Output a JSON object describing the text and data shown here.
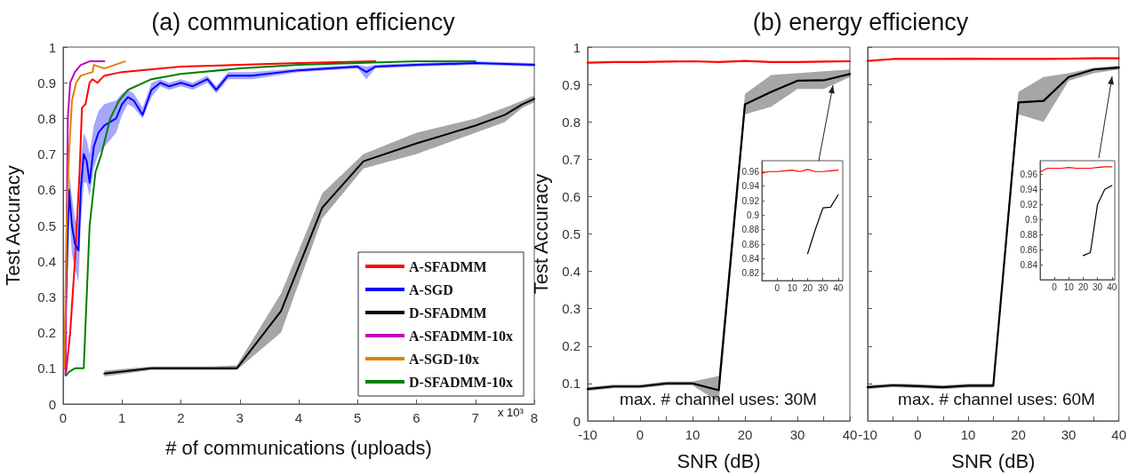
{
  "chart_data": [
    {
      "type": "line",
      "title": "(a) communication efficiency",
      "xlabel": "# of communications (uploads)",
      "ylabel": "Test Accuracy",
      "annotations": [
        "x 10³"
      ],
      "xlim": [
        0,
        8
      ],
      "xticks": [
        0,
        1,
        2,
        3,
        4,
        5,
        6,
        7,
        8
      ],
      "ylim": [
        0,
        1
      ],
      "yticks": [
        0,
        0.1,
        0.2,
        0.3,
        0.4,
        0.5,
        0.6,
        0.7,
        0.8,
        0.9,
        1
      ],
      "legend": "bottom right",
      "series": [
        {
          "name": "A-SFADMM",
          "color": "#ff0000",
          "x": [
            0.05,
            0.12,
            0.2,
            0.28,
            0.32,
            0.38,
            0.45,
            0.5,
            0.58,
            0.7,
            1.0,
            2,
            3,
            4,
            5.3
          ],
          "values": [
            0.09,
            0.2,
            0.4,
            0.65,
            0.83,
            0.84,
            0.9,
            0.91,
            0.9,
            0.92,
            0.93,
            0.945,
            0.95,
            0.955,
            0.96
          ]
        },
        {
          "name": "A-SGD",
          "color": "#0000ff",
          "x": [
            0.02,
            0.1,
            0.15,
            0.2,
            0.26,
            0.3,
            0.35,
            0.4,
            0.45,
            0.52,
            0.6,
            0.7,
            0.9,
            1.0,
            1.1,
            1.2,
            1.35,
            1.5,
            1.65,
            1.8,
            2.0,
            2.2,
            2.45,
            2.6,
            2.8,
            3.2,
            4.0,
            5.0,
            5.15,
            5.3,
            6.0,
            7.0,
            8.0
          ],
          "values": [
            0.1,
            0.6,
            0.5,
            0.45,
            0.43,
            0.6,
            0.7,
            0.68,
            0.62,
            0.72,
            0.76,
            0.78,
            0.8,
            0.84,
            0.86,
            0.85,
            0.81,
            0.88,
            0.9,
            0.89,
            0.9,
            0.89,
            0.91,
            0.88,
            0.92,
            0.92,
            0.935,
            0.945,
            0.93,
            0.945,
            0.95,
            0.955,
            0.95
          ],
          "lower": [
            0.09,
            0.55,
            0.42,
            0.38,
            0.34,
            0.5,
            0.62,
            0.62,
            0.58,
            0.66,
            0.7,
            0.72,
            0.76,
            0.81,
            0.84,
            0.83,
            0.8,
            0.86,
            0.89,
            0.88,
            0.89,
            0.88,
            0.9,
            0.87,
            0.91,
            0.91,
            0.93,
            0.94,
            0.91,
            0.94,
            0.945,
            0.95,
            0.945
          ],
          "upper": [
            0.11,
            0.65,
            0.58,
            0.52,
            0.5,
            0.68,
            0.76,
            0.74,
            0.7,
            0.78,
            0.82,
            0.84,
            0.85,
            0.87,
            0.88,
            0.87,
            0.83,
            0.9,
            0.91,
            0.9,
            0.91,
            0.9,
            0.92,
            0.89,
            0.93,
            0.93,
            0.94,
            0.95,
            0.945,
            0.95,
            0.955,
            0.96,
            0.955
          ]
        },
        {
          "name": "D-SFADMM",
          "color": "#000000",
          "x": [
            0.7,
            1.5,
            2.5,
            2.95,
            3.7,
            4.4,
            5.1,
            6,
            7,
            7.5,
            7.8,
            8
          ],
          "values": [
            0.085,
            0.1,
            0.1,
            0.1,
            0.26,
            0.55,
            0.68,
            0.73,
            0.78,
            0.81,
            0.84,
            0.855
          ],
          "lower": [
            0.077,
            0.095,
            0.095,
            0.095,
            0.2,
            0.52,
            0.66,
            0.7,
            0.76,
            0.79,
            0.83,
            0.845
          ],
          "upper": [
            0.093,
            0.105,
            0.105,
            0.108,
            0.31,
            0.59,
            0.7,
            0.76,
            0.8,
            0.83,
            0.85,
            0.865
          ]
        },
        {
          "name": "A-SFADMM-10x",
          "color": "#bf00bf",
          "x": [
            0.04,
            0.06,
            0.08,
            0.12,
            0.2,
            0.3,
            0.45,
            0.7
          ],
          "values": [
            0.08,
            0.5,
            0.8,
            0.9,
            0.93,
            0.95,
            0.96,
            0.96
          ]
        },
        {
          "name": "A-SGD-10x",
          "color": "#e08000",
          "x": [
            0.02,
            0.06,
            0.1,
            0.15,
            0.22,
            0.3,
            0.5,
            0.52,
            0.7,
            1.05
          ],
          "values": [
            0.1,
            0.5,
            0.7,
            0.85,
            0.9,
            0.92,
            0.93,
            0.95,
            0.94,
            0.96
          ]
        },
        {
          "name": "D-SFADMM-10x",
          "color": "#008000",
          "x": [
            0.05,
            0.1,
            0.2,
            0.3,
            0.35,
            0.4,
            0.45,
            0.55,
            0.65,
            0.8,
            0.95,
            1.1,
            1.5,
            2,
            3,
            4,
            5,
            6,
            7
          ],
          "values": [
            0.08,
            0.09,
            0.1,
            0.1,
            0.1,
            0.3,
            0.5,
            0.65,
            0.7,
            0.8,
            0.85,
            0.88,
            0.91,
            0.925,
            0.94,
            0.95,
            0.955,
            0.96,
            0.96
          ]
        }
      ]
    },
    {
      "type": "line",
      "title": "(b) energy efficiency",
      "xlabel": "SNR (dB)",
      "ylabel": "Test Accuracy",
      "annotations": [
        "max. # channel uses: 30M"
      ],
      "xlim": [
        -10,
        40
      ],
      "xticks": [
        -10,
        {
          "value": -5,
          "label": null
        },
        0,
        {
          "value": 5,
          "label": null
        },
        10,
        {
          "value": 15,
          "label": null
        },
        20,
        {
          "value": 25,
          "label": null
        },
        30,
        {
          "value": 35,
          "label": null
        },
        40
      ],
      "ylim": [
        0,
        1
      ],
      "yticks": [
        0,
        0.1,
        0.2,
        0.3,
        0.4,
        0.5,
        0.6,
        0.7,
        0.8,
        0.9,
        1
      ],
      "x": [
        -10,
        -5,
        0,
        5,
        10,
        15,
        20,
        25,
        30,
        35,
        40
      ],
      "series": [
        {
          "color": "#ff0000",
          "values": [
            0.958,
            0.96,
            0.96,
            0.961,
            0.962,
            0.96,
            0.963,
            0.96,
            0.96,
            0.961,
            0.962
          ]
        },
        {
          "color": "#000000",
          "values": [
            0.085,
            0.092,
            0.092,
            0.1,
            0.1,
            0.082,
            0.847,
            0.88,
            0.91,
            0.911,
            0.928
          ],
          "lower": [
            0.08,
            0.087,
            0.087,
            0.095,
            0.095,
            0.05,
            0.82,
            0.84,
            0.888,
            0.888,
            0.92
          ],
          "upper": [
            0.09,
            0.097,
            0.097,
            0.105,
            0.105,
            0.12,
            0.875,
            0.925,
            0.93,
            0.935,
            0.94
          ]
        }
      ]
    },
    {
      "type": "line",
      "xlabel": "SNR (dB)",
      "annotations": [
        "max. # channel uses: 60M"
      ],
      "xlim": [
        -10,
        40
      ],
      "xticks": [
        -10,
        {
          "value": -5,
          "label": null
        },
        0,
        {
          "value": 5,
          "label": null
        },
        10,
        {
          "value": 15,
          "label": null
        },
        20,
        {
          "value": 25,
          "label": null
        },
        30,
        {
          "value": 35,
          "label": null
        },
        40
      ],
      "ylim": [
        0,
        1
      ],
      "yticks": [
        0,
        0.1,
        0.2,
        0.3,
        0.4,
        0.5,
        0.6,
        0.7,
        0.8,
        0.9,
        1
      ],
      "tick_labels": "x",
      "x": [
        -10,
        -5,
        0,
        5,
        10,
        15,
        20,
        25,
        30,
        35,
        40
      ],
      "series": [
        {
          "color": "#ff0000",
          "values": [
            0.963,
            0.968,
            0.968,
            0.968,
            0.969,
            0.968,
            0.968,
            0.968,
            0.969,
            0.97,
            0.97
          ]
        },
        {
          "color": "#000000",
          "values": [
            0.09,
            0.095,
            0.093,
            0.09,
            0.094,
            0.094,
            0.852,
            0.856,
            0.92,
            0.94,
            0.945
          ],
          "lower": [
            0.085,
            0.09,
            0.088,
            0.085,
            0.089,
            0.089,
            0.82,
            0.8,
            0.91,
            0.93,
            0.94
          ],
          "upper": [
            0.095,
            0.1,
            0.098,
            0.095,
            0.099,
            0.099,
            0.88,
            0.92,
            0.93,
            0.945,
            0.95
          ]
        }
      ]
    },
    {
      "type": "line",
      "xlim": [
        -10,
        43
      ],
      "xticks": [
        0,
        10,
        20,
        30,
        40
      ],
      "ylim": [
        0.81,
        0.975
      ],
      "yticks": [
        0.82,
        0.84,
        0.86,
        0.88,
        0.9,
        0.92,
        0.94,
        0.96
      ],
      "series": [
        {
          "color": "#ff0000",
          "x": [
            -10,
            -5,
            0,
            5,
            10,
            15,
            20,
            25,
            30,
            35,
            40
          ],
          "values": [
            0.958,
            0.96,
            0.96,
            0.961,
            0.962,
            0.96,
            0.963,
            0.96,
            0.96,
            0.961,
            0.962
          ]
        },
        {
          "color": "#000000",
          "x": [
            20,
            25,
            30,
            35,
            40
          ],
          "values": [
            0.847,
            0.88,
            0.91,
            0.911,
            0.928
          ]
        }
      ]
    },
    {
      "type": "line",
      "xlim": [
        -10,
        42
      ],
      "xticks": [
        0,
        10,
        20,
        30,
        40
      ],
      "ylim": [
        0.82,
        0.978
      ],
      "yticks": [
        0.84,
        0.86,
        0.88,
        0.9,
        0.92,
        0.94,
        0.96
      ],
      "series": [
        {
          "color": "#ff0000",
          "x": [
            -10,
            -5,
            0,
            5,
            10,
            15,
            20,
            25,
            30,
            35,
            40
          ],
          "values": [
            0.963,
            0.968,
            0.968,
            0.968,
            0.969,
            0.968,
            0.968,
            0.968,
            0.969,
            0.97,
            0.97
          ]
        },
        {
          "color": "#000000",
          "x": [
            20,
            25,
            30,
            35,
            40
          ],
          "values": [
            0.852,
            0.856,
            0.92,
            0.94,
            0.945
          ]
        }
      ]
    }
  ]
}
